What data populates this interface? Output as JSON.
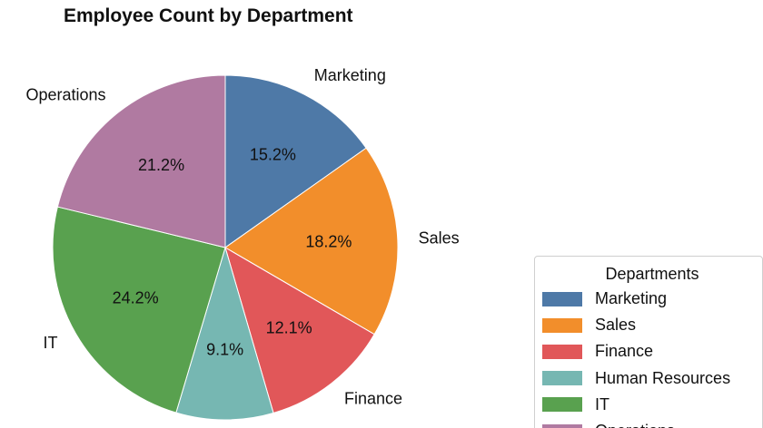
{
  "chart_data": {
    "type": "pie",
    "title": "Employee Count by Department",
    "categories": [
      "Marketing",
      "Sales",
      "Finance",
      "Human Resources",
      "IT",
      "Operations"
    ],
    "values": [
      15.2,
      18.2,
      12.1,
      9.1,
      24.2,
      21.2
    ],
    "value_labels": [
      "15.2%",
      "18.2%",
      "12.1%",
      "9.1%",
      "24.2%",
      "21.2%"
    ],
    "colors": [
      "#4e79a7",
      "#f28e2b",
      "#e15759",
      "#76b7b2",
      "#59a14f",
      "#b07aa1"
    ],
    "start_angle": "top (12 o'clock)",
    "direction": "clockwise",
    "legend": {
      "title": "Departments",
      "placement": "bottom-right"
    }
  }
}
